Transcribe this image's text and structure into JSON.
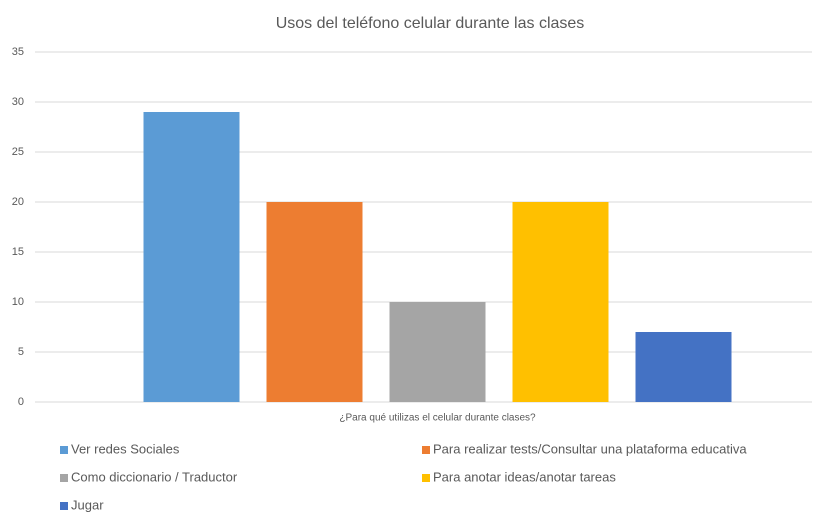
{
  "chart_data": {
    "type": "bar",
    "title": "Usos del teléfono celular durante las clases",
    "categories": [
      "¿Para qué utilizas el celular durante clases?"
    ],
    "series": [
      {
        "name": "Ver redes Sociales",
        "color": "#5b9bd5",
        "values": [
          29
        ]
      },
      {
        "name": "Para realizar tests/Consultar una plataforma educativa",
        "color": "#ed7d31",
        "values": [
          20
        ]
      },
      {
        "name": "Como diccionario / Traductor",
        "color": "#a5a5a5",
        "values": [
          10
        ]
      },
      {
        "name": "Para anotar ideas/anotar tareas",
        "color": "#ffc000",
        "values": [
          20
        ]
      },
      {
        "name": "Jugar",
        "color": "#4472c4",
        "values": [
          7
        ]
      }
    ],
    "ylim": [
      0,
      35
    ],
    "yticks": [
      0,
      5,
      10,
      15,
      20,
      25,
      30,
      35
    ],
    "grid": true
  }
}
